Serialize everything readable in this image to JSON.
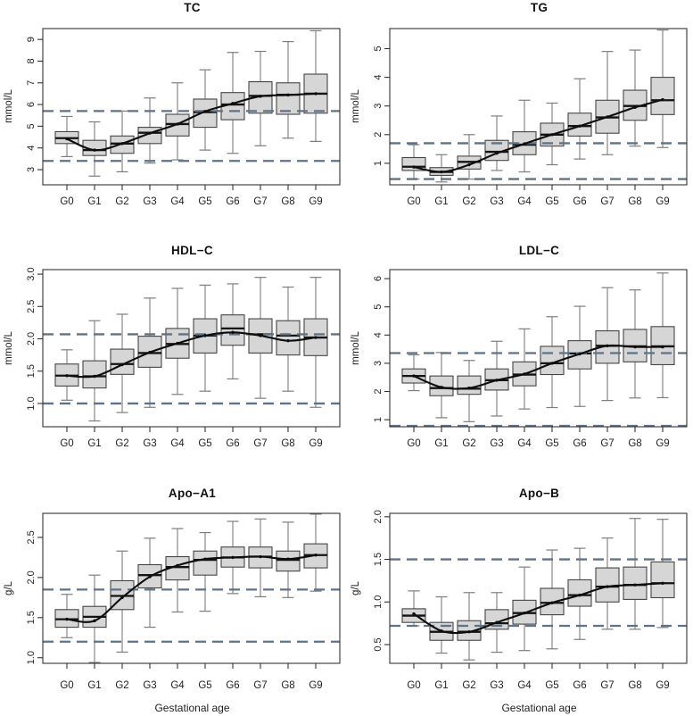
{
  "colors": {
    "box_fill": "#d6d6d6",
    "box_stroke": "#454545",
    "median": "#141414",
    "whisker": "#7d7d7d",
    "axis": "#333333",
    "tick_text": "#222222",
    "reference_dashed": "#5d7389",
    "mean_line": "#0d0d0d"
  },
  "chart_data": [
    {
      "type": "boxplot",
      "title": "TC",
      "ylabel": "mmol/L",
      "xlabel": "",
      "categories": [
        "G0",
        "G1",
        "G2",
        "G3",
        "G4",
        "G5",
        "G6",
        "G7",
        "G8",
        "G9"
      ],
      "ylim": [
        2.3,
        9.5
      ],
      "yticks": [
        3,
        4,
        5,
        6,
        7,
        8,
        9
      ],
      "ytick_labels": [
        "3",
        "4",
        "5",
        "6",
        "7",
        "8",
        "9"
      ],
      "reference_lines": {
        "upper": 5.7,
        "lower": 3.4
      },
      "series": {
        "whisker_low": [
          3.6,
          2.7,
          2.9,
          3.3,
          3.45,
          3.9,
          3.75,
          4.1,
          4.45,
          4.3
        ],
        "q1": [
          4.2,
          3.65,
          3.75,
          4.2,
          4.55,
          4.95,
          5.3,
          5.6,
          5.55,
          5.6
        ],
        "median": [
          4.45,
          3.9,
          4.2,
          4.7,
          5.1,
          5.65,
          6.0,
          6.4,
          6.45,
          6.5
        ],
        "q3": [
          4.75,
          4.35,
          4.55,
          4.95,
          5.55,
          6.25,
          6.55,
          7.05,
          7.0,
          7.4
        ],
        "whisker_high": [
          5.45,
          5.2,
          5.7,
          6.3,
          7.0,
          7.6,
          8.4,
          8.45,
          8.9,
          9.4
        ],
        "mean_curve": [
          4.42,
          3.9,
          4.2,
          4.68,
          5.1,
          5.68,
          6.05,
          6.38,
          6.44,
          6.5
        ]
      }
    },
    {
      "type": "boxplot",
      "title": "TG",
      "ylabel": "mmol/L",
      "xlabel": "",
      "categories": [
        "G0",
        "G1",
        "G2",
        "G3",
        "G4",
        "G5",
        "G6",
        "G7",
        "G8",
        "G9"
      ],
      "ylim": [
        0.25,
        5.7
      ],
      "yticks": [
        1,
        2,
        3,
        4,
        5
      ],
      "ytick_labels": [
        "1",
        "2",
        "3",
        "4",
        "5"
      ],
      "reference_lines": {
        "upper": 1.7,
        "lower": 0.45
      },
      "series": {
        "whisker_low": [
          0.45,
          0.35,
          0.45,
          0.75,
          0.7,
          0.95,
          1.15,
          1.3,
          1.6,
          1.55
        ],
        "q1": [
          0.75,
          0.58,
          0.8,
          1.1,
          1.3,
          1.6,
          1.95,
          2.05,
          2.5,
          2.7
        ],
        "median": [
          0.88,
          0.7,
          1.05,
          1.4,
          1.65,
          2.0,
          2.3,
          2.6,
          3.0,
          3.2
        ],
        "q3": [
          1.2,
          0.85,
          1.25,
          1.8,
          2.1,
          2.4,
          2.75,
          3.2,
          3.55,
          4.0
        ],
        "whisker_high": [
          1.65,
          1.3,
          2.0,
          2.65,
          3.2,
          3.1,
          3.95,
          4.9,
          4.95,
          5.65
        ],
        "mean_curve": [
          0.87,
          0.7,
          0.95,
          1.35,
          1.68,
          2.0,
          2.3,
          2.62,
          2.95,
          3.22
        ]
      }
    },
    {
      "type": "boxplot",
      "title": "HDL−C",
      "ylabel": "mmol/L",
      "xlabel": "",
      "categories": [
        "G0",
        "G1",
        "G2",
        "G3",
        "G4",
        "G5",
        "G6",
        "G7",
        "G8",
        "G9"
      ],
      "ylim": [
        0.64,
        3.07
      ],
      "yticks": [
        1.0,
        1.5,
        2.0,
        2.5,
        3.0
      ],
      "ytick_labels": [
        "1.0",
        "1.5",
        "2.0",
        "2.5",
        "3.0"
      ],
      "reference_lines": {
        "upper": 2.07,
        "lower": 1.0
      },
      "series": {
        "whisker_low": [
          1.05,
          0.73,
          0.86,
          0.94,
          1.14,
          1.19,
          1.38,
          1.08,
          1.19,
          0.94
        ],
        "q1": [
          1.27,
          1.24,
          1.45,
          1.56,
          1.7,
          1.78,
          1.9,
          1.78,
          1.75,
          1.74
        ],
        "median": [
          1.43,
          1.42,
          1.61,
          1.78,
          1.92,
          2.05,
          2.16,
          2.07,
          2.05,
          2.02
        ],
        "q3": [
          1.61,
          1.66,
          1.84,
          2.04,
          2.16,
          2.31,
          2.37,
          2.31,
          2.28,
          2.31
        ],
        "whisker_high": [
          1.83,
          2.28,
          2.38,
          2.63,
          2.78,
          2.83,
          2.85,
          2.95,
          2.8,
          2.95
        ],
        "mean_curve": [
          1.43,
          1.42,
          1.6,
          1.79,
          1.93,
          2.05,
          2.1,
          2.05,
          1.97,
          2.02
        ]
      }
    },
    {
      "type": "boxplot",
      "title": "LDL−C",
      "ylabel": "mmol/L",
      "xlabel": "",
      "categories": [
        "G0",
        "G1",
        "G2",
        "G3",
        "G4",
        "G5",
        "G6",
        "G7",
        "G8",
        "G9"
      ],
      "ylim": [
        0.75,
        6.32
      ],
      "yticks": [
        1,
        2,
        3,
        4,
        5,
        6
      ],
      "ytick_labels": [
        "1",
        "2",
        "3",
        "4",
        "5",
        "6"
      ],
      "reference_lines": {
        "upper": 3.36,
        "lower": 0.78
      },
      "series": {
        "whisker_low": [
          2.03,
          1.07,
          0.93,
          1.13,
          1.38,
          1.43,
          1.47,
          1.68,
          1.77,
          1.78
        ],
        "q1": [
          2.3,
          1.85,
          1.9,
          2.05,
          2.2,
          2.6,
          2.8,
          3.0,
          3.05,
          2.95
        ],
        "median": [
          2.55,
          2.12,
          2.1,
          2.4,
          2.6,
          3.0,
          3.35,
          3.62,
          3.6,
          3.6
        ],
        "q3": [
          2.8,
          2.55,
          2.55,
          2.8,
          3.05,
          3.6,
          3.8,
          4.15,
          4.2,
          4.3
        ],
        "whisker_high": [
          3.3,
          3.38,
          3.1,
          3.78,
          4.22,
          4.65,
          5.02,
          5.68,
          5.6,
          6.2
        ],
        "mean_curve": [
          2.55,
          2.15,
          2.12,
          2.4,
          2.62,
          3.0,
          3.33,
          3.62,
          3.58,
          3.58
        ]
      }
    },
    {
      "type": "boxplot",
      "title": "Apo−A1",
      "ylabel": "g/L",
      "xlabel": "Gestational age",
      "categories": [
        "G0",
        "G1",
        "G2",
        "G3",
        "G4",
        "G5",
        "G6",
        "G7",
        "G8",
        "G9"
      ],
      "ylim": [
        0.93,
        2.8
      ],
      "yticks": [
        1.0,
        1.5,
        2.0,
        2.5
      ],
      "ytick_labels": [
        "1.0",
        "1.5",
        "2.0",
        "2.5"
      ],
      "reference_lines": {
        "upper": 1.85,
        "lower": 1.2
      },
      "series": {
        "whisker_low": [
          1.25,
          0.94,
          1.07,
          1.38,
          1.57,
          1.58,
          1.8,
          1.76,
          1.75,
          1.83
        ],
        "q1": [
          1.38,
          1.38,
          1.6,
          1.87,
          1.97,
          2.03,
          2.13,
          2.12,
          2.08,
          2.12
        ],
        "median": [
          1.48,
          1.51,
          1.77,
          2.03,
          2.13,
          2.22,
          2.25,
          2.26,
          2.22,
          2.28
        ],
        "q3": [
          1.6,
          1.64,
          1.96,
          2.16,
          2.26,
          2.33,
          2.38,
          2.38,
          2.33,
          2.42
        ],
        "whisker_high": [
          1.79,
          2.03,
          2.33,
          2.49,
          2.61,
          2.56,
          2.7,
          2.73,
          2.69,
          2.79
        ],
        "mean_curve": [
          1.48,
          1.46,
          1.75,
          2.01,
          2.15,
          2.23,
          2.25,
          2.26,
          2.23,
          2.28
        ]
      }
    },
    {
      "type": "boxplot",
      "title": "Apo−B",
      "ylabel": "g/L",
      "xlabel": "Gestational age",
      "categories": [
        "G0",
        "G1",
        "G2",
        "G3",
        "G4",
        "G5",
        "G6",
        "G7",
        "G8",
        "G9"
      ],
      "ylim": [
        0.28,
        2.04
      ],
      "yticks": [
        0.5,
        1.0,
        1.5,
        2.0
      ],
      "ytick_labels": [
        "0.5",
        "1.0",
        "1.5",
        "2.0"
      ],
      "reference_lines": {
        "upper": 1.5,
        "lower": 0.72
      },
      "series": {
        "whisker_low": [
          0.72,
          0.4,
          0.32,
          0.41,
          0.43,
          0.45,
          0.56,
          0.68,
          0.68,
          0.7
        ],
        "q1": [
          0.76,
          0.55,
          0.55,
          0.68,
          0.74,
          0.85,
          0.95,
          1.0,
          1.03,
          1.05
        ],
        "median": [
          0.84,
          0.65,
          0.65,
          0.75,
          0.87,
          0.99,
          1.08,
          1.18,
          1.2,
          1.22
        ],
        "q3": [
          0.92,
          0.76,
          0.78,
          0.91,
          1.02,
          1.16,
          1.26,
          1.4,
          1.41,
          1.47
        ],
        "whisker_high": [
          1.13,
          1.06,
          1.11,
          1.11,
          1.41,
          1.61,
          1.63,
          1.75,
          1.98,
          1.97
        ],
        "mean_curve": [
          0.86,
          0.66,
          0.65,
          0.76,
          0.87,
          0.99,
          1.08,
          1.18,
          1.2,
          1.22
        ]
      }
    }
  ]
}
